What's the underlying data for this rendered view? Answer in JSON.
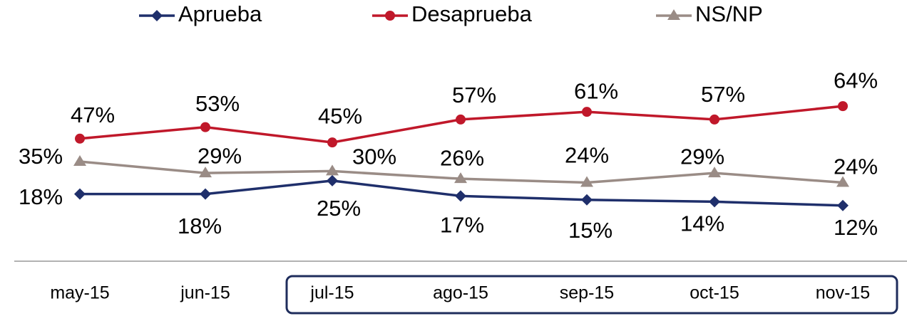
{
  "chart_data": {
    "type": "line",
    "categories": [
      "may-15",
      "jun-15",
      "jul-15",
      "ago-15",
      "sep-15",
      "oct-15",
      "nov-15"
    ],
    "ylim": [
      0,
      70
    ],
    "series": [
      {
        "name": "Aprueba",
        "color": "#1f2f6b",
        "values": [
          18,
          18,
          25,
          17,
          15,
          14,
          12
        ],
        "value_labels": [
          "18%",
          "18%",
          "25%",
          "17%",
          "15%",
          "14%",
          "12%"
        ]
      },
      {
        "name": "Desaprueba",
        "color": "#c0182a",
        "values": [
          47,
          53,
          45,
          57,
          61,
          57,
          64
        ],
        "value_labels": [
          "47%",
          "53%",
          "45%",
          "57%",
          "61%",
          "57%",
          "64%"
        ]
      },
      {
        "name": "NS/NP",
        "color": "#9a8c86",
        "values": [
          35,
          29,
          30,
          26,
          24,
          29,
          24
        ],
        "value_labels": [
          "35%",
          "29%",
          "30%",
          "26%",
          "24%",
          "29%",
          "24%"
        ]
      }
    ]
  }
}
